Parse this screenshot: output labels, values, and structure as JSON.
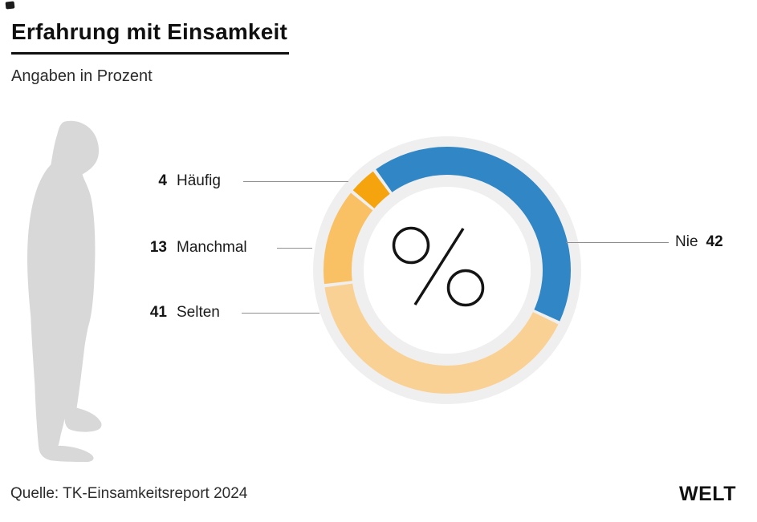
{
  "header": {
    "title": "Erfahrung mit Einsamkeit",
    "subtitle": "Angaben in Prozent"
  },
  "footer": {
    "source": "Quelle: TK-Einsamkeitsreport 2024",
    "brand": "WELT"
  },
  "colors": {
    "nie_blue": "#3187C6",
    "selten_light_orange": "#FAD195",
    "manchmal_orange": "#FAC064",
    "haeufig_dark_orange": "#F5A40D",
    "ring_background_gray": "#EFEFF0",
    "silhouette_gray": "#D8D8D8",
    "leader_line_gray": "#8F8F8F"
  },
  "icons": {
    "center_icon": "percent-icon",
    "left_illustration": "lonely-person-silhouette-icon"
  },
  "chart_data": {
    "type": "pie",
    "variant": "donut",
    "title": "Erfahrung mit Einsamkeit",
    "unit_label": "Angaben in Prozent",
    "legend_position": "callouts",
    "start_angle_deg": -36,
    "gap_deg": 1.6,
    "slices": [
      {
        "label": "Nie",
        "value": 42,
        "color": "#3187C6",
        "callout_side": "right"
      },
      {
        "label": "Selten",
        "value": 41,
        "color": "#FAD195",
        "callout_side": "left"
      },
      {
        "label": "Manchmal",
        "value": 13,
        "color": "#FAC064",
        "callout_side": "left"
      },
      {
        "label": "Häufig",
        "value": 4,
        "color": "#F5A40D",
        "callout_side": "left"
      }
    ]
  }
}
